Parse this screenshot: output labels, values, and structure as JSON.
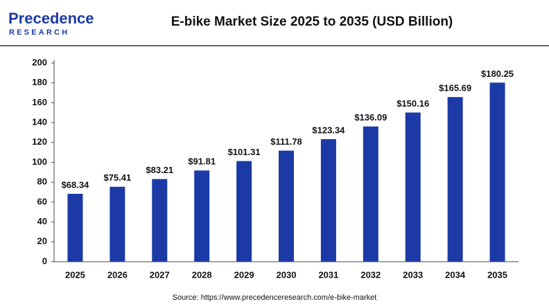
{
  "logo": {
    "name": "Precedence",
    "tagline": "RESEARCH"
  },
  "chart_data": {
    "type": "bar",
    "title": "E-bike Market Size 2025 to 2035 (USD Billion)",
    "categories": [
      "2025",
      "2026",
      "2027",
      "2028",
      "2029",
      "2030",
      "2031",
      "2032",
      "2033",
      "2034",
      "2035"
    ],
    "values": [
      68.34,
      75.41,
      83.21,
      91.81,
      101.31,
      111.78,
      123.34,
      136.09,
      150.16,
      165.69,
      180.25
    ],
    "value_labels": [
      "$68.34",
      "$75.41",
      "$83.21",
      "$91.81",
      "$101.31",
      "$111.78",
      "$123.34",
      "$136.09",
      "$150.16",
      "$165.69",
      "$180.25"
    ],
    "color": "#1b3aa6",
    "ylim": [
      0,
      200
    ],
    "yticks": [
      0,
      20,
      40,
      60,
      80,
      100,
      120,
      140,
      160,
      180,
      200
    ],
    "grid": false,
    "source": "Source: https://www.precedenceresearch.com/e-bike-market"
  }
}
